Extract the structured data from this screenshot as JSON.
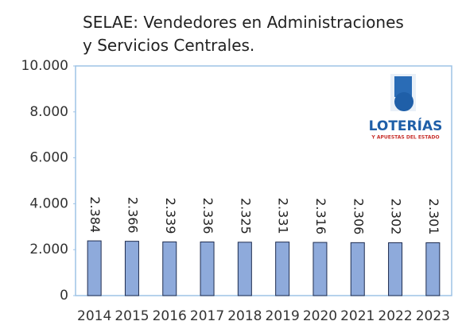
{
  "chart_data": {
    "type": "bar",
    "title": [
      "SELAE: Vendedores en Administraciones",
      "y Servicios Centrales."
    ],
    "categories": [
      "2014",
      "2015",
      "2016",
      "2017",
      "2018",
      "2019",
      "2020",
      "2021",
      "2022",
      "2023"
    ],
    "values": [
      2384,
      2366,
      2339,
      2336,
      2325,
      2331,
      2316,
      2306,
      2302,
      2301
    ],
    "value_labels": [
      "2.384",
      "2.366",
      "2.339",
      "2.336",
      "2.325",
      "2.331",
      "2.316",
      "2.306",
      "2.302",
      "2.301"
    ],
    "color": "#8eaadb",
    "ylim": [
      0,
      10000
    ],
    "yticks": [
      0,
      {
        "value": 2000,
        "label": "2.000"
      },
      {
        "value": 4000,
        "label": "4.000"
      },
      {
        "value": 6000,
        "label": "6.000"
      },
      {
        "value": 8000,
        "label": "8.000"
      },
      {
        "value": 10000,
        "label": "10.000"
      }
    ],
    "grid": false
  },
  "logo": {
    "name": "LOTERÍAS",
    "tagline": "Y APUESTAS DEL ESTADO"
  }
}
